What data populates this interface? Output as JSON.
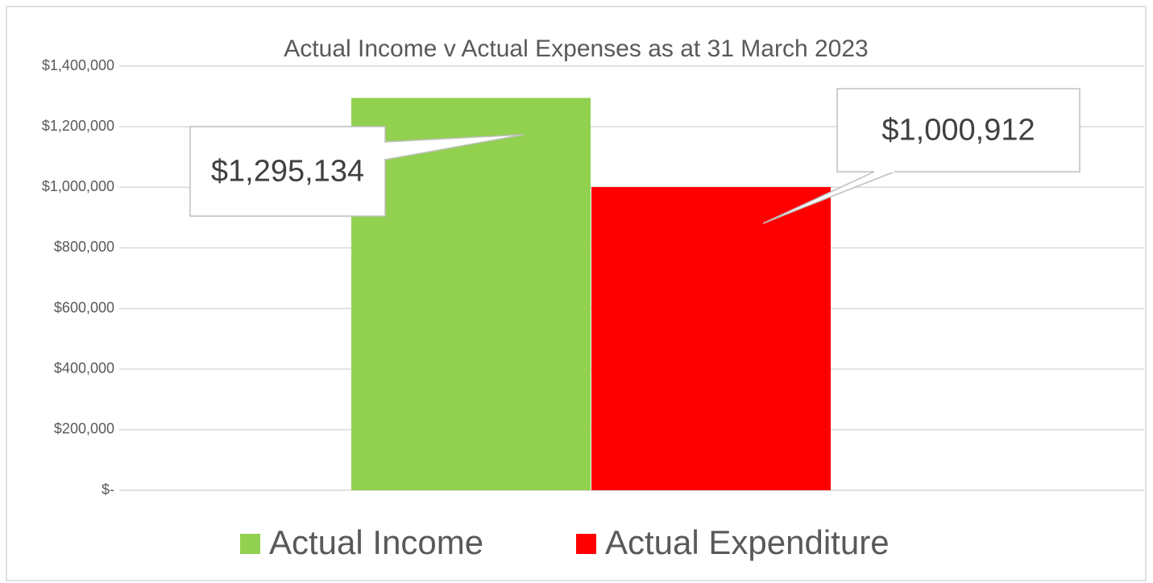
{
  "chart_data": {
    "type": "bar",
    "title": "Actual Income v Actual Expenses as at 31 March 2023",
    "categories": [
      null
    ],
    "series": [
      {
        "name": "Actual Income",
        "color": "#92d050",
        "values": [
          1295134
        ],
        "value_labels": [
          "$1,295,134"
        ]
      },
      {
        "name": "Actual Expenditure",
        "color": "#ff0000",
        "values": [
          1000912
        ],
        "value_labels": [
          "$1,000,912"
        ]
      }
    ],
    "ylim": [
      0,
      1400000
    ],
    "yticks": [
      {
        "value": 0,
        "label": "$-"
      },
      {
        "value": 200000,
        "label": "$200,000"
      },
      {
        "value": 400000,
        "label": "$400,000"
      },
      {
        "value": 600000,
        "label": "$600,000"
      },
      {
        "value": 800000,
        "label": "$800,000"
      },
      {
        "value": 1000000,
        "label": "$1,000,000"
      },
      {
        "value": 1200000,
        "label": "$1,200,000"
      },
      {
        "value": 1400000,
        "label": "$1,400,000"
      }
    ],
    "grid": true,
    "legend": "bottom"
  }
}
